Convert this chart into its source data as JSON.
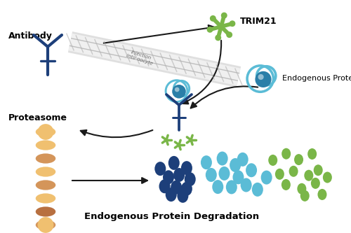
{
  "bg_color": "#ffffff",
  "antibody_color": "#1d3f7a",
  "trim21_color": "#7ab648",
  "ep_outer": "#5bbcd6",
  "ep_inner": "#2a7fa8",
  "proto_light": "#f0c070",
  "proto_mid": "#d4955a",
  "proto_dark": "#b87040",
  "scatter_dark_blue": "#1d3f7a",
  "scatter_light_blue": "#5bbcd6",
  "scatter_green": "#7ab648",
  "arrow_color": "#1a1a1a",
  "label_antibody": "Antibody",
  "label_trim21": "TRIM21",
  "label_endo": "Endogenous Protein",
  "label_proteasome": "Proteasome",
  "label_degradation": "Endogenous Protein Degradation",
  "tube_color1": "#d0d0d0",
  "tube_color2": "#f0f0f0",
  "tube_stripe": "#b8b8b8"
}
